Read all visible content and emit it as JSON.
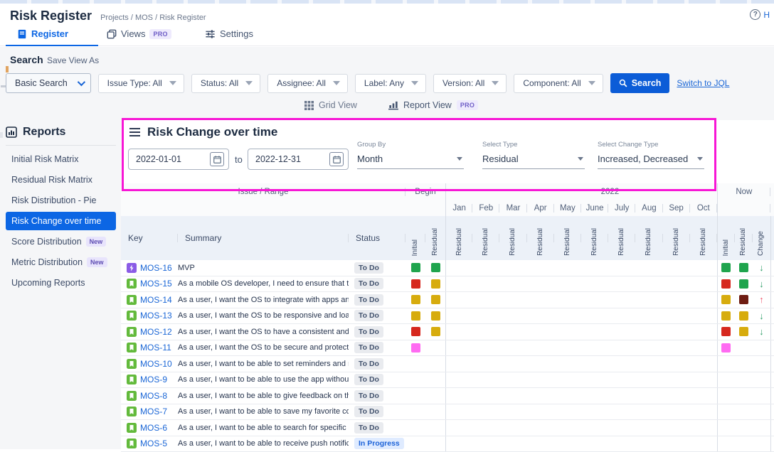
{
  "page": {
    "top_title": "Risk Register",
    "breadcrumb": "Projects / MOS / Risk Register",
    "help_fragment": "H"
  },
  "tabs": [
    {
      "label": "Register",
      "active": true
    },
    {
      "label": "Views",
      "badge": "PRO"
    },
    {
      "label": "Settings"
    }
  ],
  "search_section": {
    "title": "Search",
    "save_view_as": "Save View As"
  },
  "filters": {
    "mode_label": "Basic Search",
    "pills": [
      "Issue Type: All",
      "Status: All",
      "Assignee: All",
      "Label: Any",
      "Version: All",
      "Component: All"
    ],
    "search_button": "Search",
    "jql_link": "Switch to JQL"
  },
  "view_toggle": {
    "grid_label": "Grid View",
    "report_label": "Report View",
    "pro_badge": "PRO"
  },
  "sidebar": {
    "title": "Reports",
    "items": [
      {
        "label": "Initial Risk Matrix"
      },
      {
        "label": "Residual Risk Matrix"
      },
      {
        "label": "Risk Distribution - Pie"
      },
      {
        "label": "Risk Change over time",
        "selected": true
      },
      {
        "label": "Score Distribution",
        "badge": "New"
      },
      {
        "label": "Metric Distribution",
        "badge": "New"
      },
      {
        "label": "Upcoming Reports"
      }
    ]
  },
  "report": {
    "title": "Risk Change over time",
    "date_from": "2022-01-01",
    "to_label": "to",
    "date_to": "2022-12-31",
    "group_by": {
      "label": "Group By",
      "value": "Month"
    },
    "select_type": {
      "label": "Select Type",
      "value": "Residual"
    },
    "select_change_type": {
      "label": "Select Change Type",
      "value": "Increased, Decreased"
    }
  },
  "table": {
    "group_headers": {
      "issue_range": "Issue / Range",
      "begin": "Begin",
      "year": "2022",
      "now": "Now"
    },
    "months": [
      "Jan",
      "Feb",
      "Mar",
      "Apr",
      "May",
      "June",
      "July",
      "Aug",
      "Sep",
      "Oct"
    ],
    "column_headers": {
      "key": "Key",
      "summary": "Summary",
      "status": "Status",
      "initial": "Initial",
      "residual": "Residual",
      "change": "Change"
    },
    "rows": [
      {
        "key": "MOS-16",
        "issue_type": "epic",
        "summary": "MVP",
        "status": "To Do",
        "status_kind": "todo",
        "begin_initial": "green",
        "begin_residual": "green",
        "now_initial": "green",
        "now_residual": "green",
        "change": "down"
      },
      {
        "key": "MOS-15",
        "issue_type": "story",
        "summary": "As a mobile OS developer, I need to ensure that the...",
        "status": "To Do",
        "status_kind": "todo",
        "begin_initial": "red",
        "begin_residual": "gold",
        "now_initial": "red",
        "now_residual": "green",
        "change": "down"
      },
      {
        "key": "MOS-14",
        "issue_type": "story",
        "summary": "As a user, I want the OS to integrate with apps and ...",
        "status": "To Do",
        "status_kind": "todo",
        "begin_initial": "gold",
        "begin_residual": "gold",
        "now_initial": "gold",
        "now_residual": "darkred",
        "change": "up"
      },
      {
        "key": "MOS-13",
        "issue_type": "story",
        "summary": "As a user, I want the OS to be responsive and load ...",
        "status": "To Do",
        "status_kind": "todo",
        "begin_initial": "gold",
        "begin_residual": "gold",
        "now_initial": "gold",
        "now_residual": "gold",
        "change": "down"
      },
      {
        "key": "MOS-12",
        "issue_type": "story",
        "summary": "As a user, I want the OS to have a consistent and vi...",
        "status": "To Do",
        "status_kind": "todo",
        "begin_initial": "red",
        "begin_residual": "gold",
        "now_initial": "red",
        "now_residual": "gold",
        "change": "down"
      },
      {
        "key": "MOS-11",
        "issue_type": "story",
        "summary": "As a user, I want the OS to be secure and protect m...",
        "status": "To Do",
        "status_kind": "todo",
        "begin_initial": "pink",
        "now_initial": "pink"
      },
      {
        "key": "MOS-10",
        "issue_type": "story",
        "summary": "As a user, I want to be able to set reminders and re...",
        "status": "To Do",
        "status_kind": "todo"
      },
      {
        "key": "MOS-9",
        "issue_type": "story",
        "summary": "As a user, I want to be able to use the app without ...",
        "status": "To Do",
        "status_kind": "todo"
      },
      {
        "key": "MOS-8",
        "issue_type": "story",
        "summary": "As a user, I want to be able to give feedback on the...",
        "status": "To Do",
        "status_kind": "todo"
      },
      {
        "key": "MOS-7",
        "issue_type": "story",
        "summary": "As a user, I want to be able to save my favorite cont...",
        "status": "To Do",
        "status_kind": "todo"
      },
      {
        "key": "MOS-6",
        "issue_type": "story",
        "summary": "As a user, I want to be able to search for specific co...",
        "status": "To Do",
        "status_kind": "todo"
      },
      {
        "key": "MOS-5",
        "issue_type": "story",
        "summary": "As a user, I want to be able to receive push notificat...",
        "status": "In Progress",
        "status_kind": "inprogress"
      }
    ]
  },
  "colors": {
    "accent_blue": "#0C66E4",
    "risk_green": "#1FA44D",
    "risk_red": "#D6281E",
    "risk_gold": "#D7AC0E",
    "risk_darkred": "#6E1C12",
    "risk_pink": "#FF6BF2",
    "arrow_down": "#2E9E68",
    "arrow_up": "#F0586E",
    "annotation": "#F716D5"
  }
}
